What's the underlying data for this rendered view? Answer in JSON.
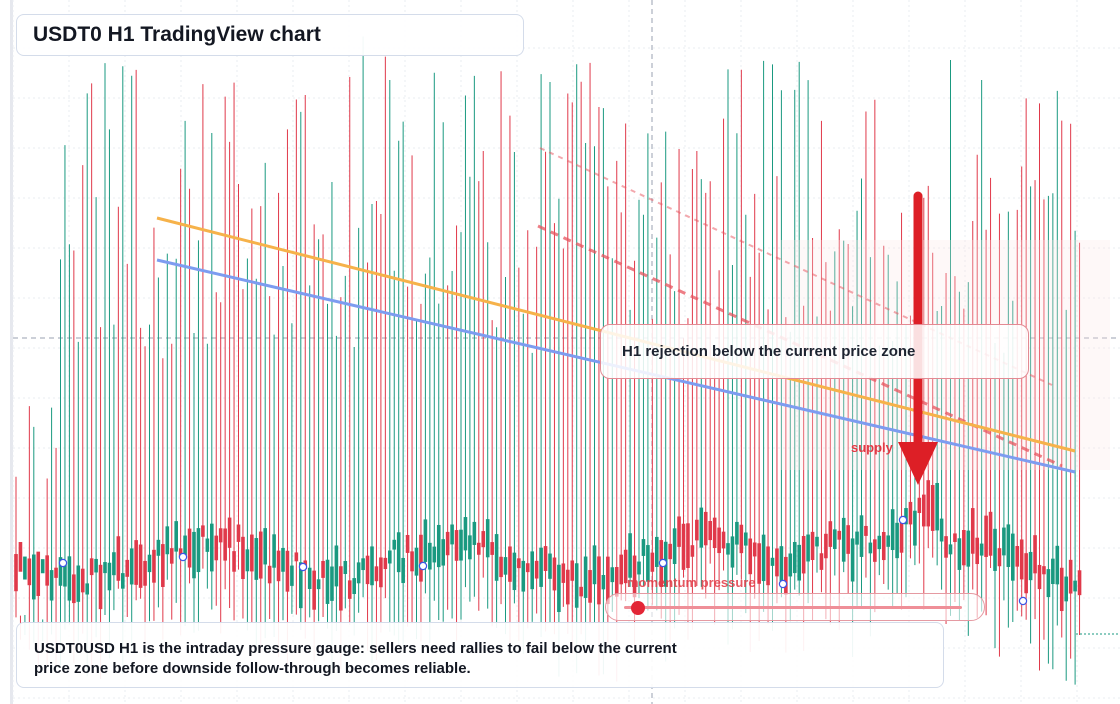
{
  "title": "USDT0 H1 TradingView chart",
  "annotations": {
    "callout": "H1 rejection below the current price zone",
    "supply_label": "supply",
    "gauge_label": "momentum pressure",
    "gauge_level": 0.04
  },
  "caption": "USDT0USD H1 is the intraday pressure gauge: sellers need rallies to fail below the current price zone before downside follow-through becomes reliable.",
  "colors": {
    "bull": "#1a9980",
    "bear": "#e0394a",
    "trend_orange": "#f6b24a",
    "trend_blue": "#7d9cf0",
    "zone_red": "#e8545e",
    "arrow": "#dd1f26"
  },
  "chart_data": {
    "type": "candlestick",
    "symbol": "USDT0USD",
    "timeframe": "H1",
    "pattern": "up-down alternating H1 candles with tall wicks; price drifting near the lower band",
    "trendlines": [
      {
        "name": "",
        "color": "orange",
        "slope": "descending"
      },
      {
        "name": "",
        "color": "blue",
        "slope": "descending"
      }
    ],
    "zones": [
      {
        "label": "supply",
        "side": "above price"
      }
    ],
    "arrow": {
      "direction": "down"
    },
    "grid": true
  }
}
